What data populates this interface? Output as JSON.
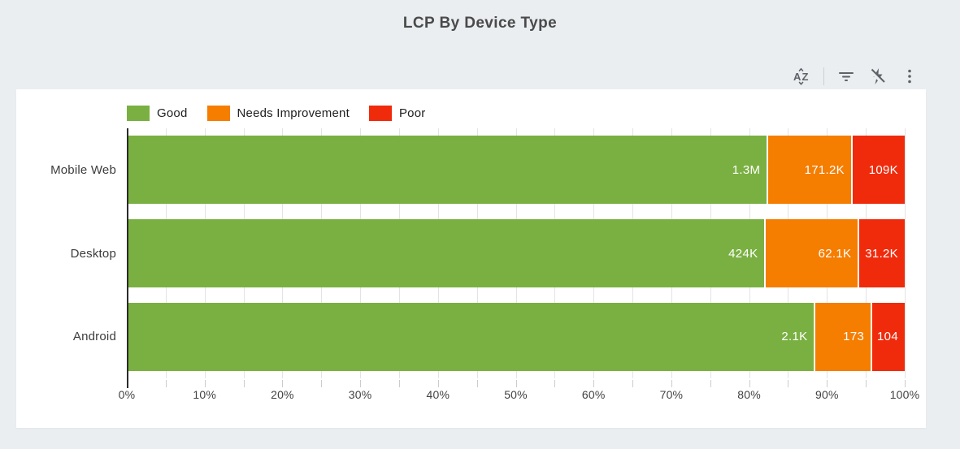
{
  "title": "LCP By Device Type",
  "toolbar": {
    "icons": [
      "sort-az-icon",
      "filter-icon",
      "flash-off-icon",
      "more-options-icon"
    ]
  },
  "colors": {
    "page_background": "#EAEEF1",
    "card_background": "#FFFFFF",
    "good": "#7AB042",
    "needs_improvement": "#F57D00",
    "poor": "#F02B0C",
    "axis": "#2B2B2B",
    "gridline": "#E3E3E3"
  },
  "chart_data": {
    "type": "bar",
    "variant": "stacked-horizontal-100pct",
    "title": "LCP By Device Type",
    "categories": [
      "Mobile Web",
      "Desktop",
      "Android"
    ],
    "series": [
      {
        "name": "Good",
        "color": "#7AB042",
        "values": [
          1300000,
          424000,
          2100
        ],
        "value_labels": [
          "1.3M",
          "424K",
          "2.1K"
        ]
      },
      {
        "name": "Needs Improvement",
        "color": "#F57D00",
        "values": [
          171200,
          62100,
          173
        ],
        "value_labels": [
          "171.2K",
          "62.1K",
          "173"
        ]
      },
      {
        "name": "Poor",
        "color": "#F02B0C",
        "values": [
          109000,
          31200,
          104
        ],
        "value_labels": [
          "109K",
          "31.2K",
          "104"
        ]
      }
    ],
    "x_ticks": [
      "0%",
      "10%",
      "20%",
      "30%",
      "40%",
      "50%",
      "60%",
      "70%",
      "80%",
      "90%",
      "100%"
    ],
    "xlim": [
      0,
      100
    ],
    "minor_grid_step_percent": 5,
    "grid": "vertical-minor",
    "legend_position": "top-left"
  }
}
